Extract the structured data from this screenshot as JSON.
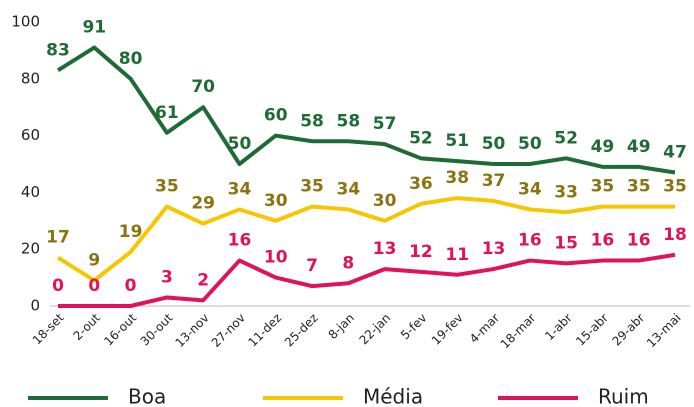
{
  "chart_data": {
    "type": "line",
    "categories": [
      "18-set",
      "2-out",
      "16-out",
      "30-out",
      "13-nov",
      "27-nov",
      "11-dez",
      "25-dez",
      "8-jan",
      "22-jan",
      "5-fev",
      "19-fev",
      "4-mar",
      "18-mar",
      "1-abr",
      "15-abr",
      "29-abr",
      "13-mai"
    ],
    "series": [
      {
        "name": "Boa",
        "color": "#1f6b35",
        "label_color": "#1f6b35",
        "values": [
          83,
          91,
          80,
          61,
          70,
          50,
          60,
          58,
          58,
          57,
          52,
          51,
          50,
          50,
          52,
          49,
          49,
          47
        ]
      },
      {
        "name": "Média",
        "color": "#f7c600",
        "label_color": "#8a7411",
        "values": [
          17,
          9,
          19,
          35,
          29,
          34,
          30,
          35,
          34,
          30,
          36,
          38,
          37,
          34,
          33,
          35,
          35,
          35
        ]
      },
      {
        "name": "Ruim",
        "color": "#e0125c",
        "label_color": "#e0125c",
        "values": [
          0,
          0,
          0,
          3,
          2,
          16,
          10,
          7,
          8,
          13,
          12,
          11,
          13,
          16,
          15,
          16,
          16,
          18
        ]
      }
    ],
    "ylim": [
      0,
      100
    ],
    "yticks": [
      0,
      20,
      40,
      60,
      80,
      100
    ],
    "grid": false
  }
}
